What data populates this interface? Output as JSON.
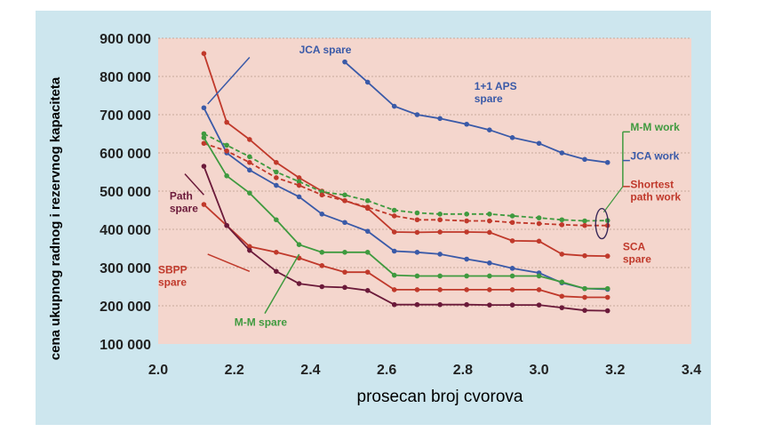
{
  "chart_data": {
    "type": "line",
    "xlabel": "prosecan broj cvorova",
    "ylabel": "cena ukupnog radnog i rezervnog kapaciteta",
    "xlim": [
      2.0,
      3.4
    ],
    "ylim": [
      100000,
      900000
    ],
    "x_ticks": [
      "2.0",
      "2.2",
      "2.4",
      "2.6",
      "2.8",
      "3.0",
      "3.2",
      "3.4"
    ],
    "y_ticks": [
      "100 000",
      "200 000",
      "300 000",
      "400 000",
      "500 000",
      "600 000",
      "700 000",
      "800 000",
      "900 000"
    ],
    "grid": true,
    "colors": {
      "plot_bg": "#f4d6cd",
      "frame_bg": "#cde6ee",
      "grid": "#c8a99c"
    },
    "series": [
      {
        "name": "1+1 APS spare",
        "color": "#3a5aa8",
        "style": "solid",
        "x": [
          2.49,
          2.55,
          2.62,
          2.68,
          2.74,
          2.81,
          2.87,
          2.93,
          3.0,
          3.06,
          3.12,
          3.18
        ],
        "y": [
          838000,
          785000,
          722000,
          700000,
          690000,
          675000,
          660000,
          640000,
          625000,
          600000,
          583000,
          575000
        ]
      },
      {
        "name": "JCA spare",
        "color": "#3a5aa8",
        "style": "solid",
        "x": [
          2.12,
          2.18,
          2.24,
          2.31,
          2.37,
          2.43,
          2.49,
          2.55,
          2.62,
          2.68,
          2.74,
          2.81,
          2.87,
          2.93,
          3.0,
          3.06,
          3.12,
          3.18
        ],
        "y": [
          718000,
          600000,
          555000,
          515000,
          485000,
          440000,
          418000,
          395000,
          343000,
          340000,
          335000,
          322000,
          312000,
          298000,
          286000,
          260000,
          245000,
          243000
        ]
      },
      {
        "name": "Shortest path work",
        "color": "#c0392b",
        "style": "solid",
        "x": [
          2.12,
          2.18,
          2.24,
          2.31,
          2.37,
          2.43,
          2.49,
          2.55,
          2.62,
          2.68,
          2.74,
          2.81,
          2.87,
          2.93,
          3.0,
          3.06,
          3.12,
          3.18
        ],
        "y": [
          860000,
          680000,
          635000,
          575000,
          535000,
          500000,
          475000,
          455000,
          393000,
          392000,
          393000,
          393000,
          392000,
          370000,
          369000,
          335000,
          331000,
          330000
        ]
      },
      {
        "name": "M-M work",
        "color": "#3f9a3f",
        "style": "dashed",
        "x": [
          2.12,
          2.18,
          2.24,
          2.31,
          2.37,
          2.43,
          2.49,
          2.55,
          2.62,
          2.68,
          2.74,
          2.81,
          2.87,
          2.93,
          3.0,
          3.06,
          3.12,
          3.18
        ],
        "y": [
          650000,
          620000,
          590000,
          550000,
          525000,
          498000,
          490000,
          475000,
          450000,
          443000,
          440000,
          440000,
          440000,
          435000,
          430000,
          425000,
          422000,
          423000
        ]
      },
      {
        "name": "JCA work",
        "color": "#c0392b",
        "style": "dashed",
        "x": [
          2.12,
          2.18,
          2.24,
          2.31,
          2.37,
          2.43,
          2.49,
          2.55,
          2.62,
          2.68,
          2.74,
          2.81,
          2.87,
          2.93,
          3.0,
          3.06,
          3.12,
          3.18
        ],
        "y": [
          625000,
          605000,
          575000,
          535000,
          515000,
          490000,
          475000,
          458000,
          435000,
          425000,
          425000,
          422000,
          422000,
          418000,
          415000,
          412000,
          410000,
          410000
        ]
      },
      {
        "name": "M-M spare",
        "color": "#3f9a3f",
        "style": "solid",
        "x": [
          2.12,
          2.18,
          2.24,
          2.31,
          2.37,
          2.43,
          2.49,
          2.55,
          2.62,
          2.68,
          2.74,
          2.81,
          2.87,
          2.93,
          3.0,
          3.06,
          3.12,
          3.18
        ],
        "y": [
          640000,
          540000,
          495000,
          425000,
          360000,
          340000,
          340000,
          340000,
          280000,
          278000,
          278000,
          278000,
          278000,
          278000,
          278000,
          262000,
          245000,
          245000
        ]
      },
      {
        "name": "SBPP spare",
        "color": "#c0392b",
        "style": "solid",
        "x": [
          2.12,
          2.18,
          2.24,
          2.31,
          2.37,
          2.43,
          2.49,
          2.55,
          2.62,
          2.68,
          2.74,
          2.81,
          2.87,
          2.93,
          3.0,
          3.06,
          3.12,
          3.18
        ],
        "y": [
          465000,
          410000,
          355000,
          340000,
          325000,
          305000,
          288000,
          288000,
          242000,
          242000,
          242000,
          242000,
          242000,
          242000,
          242000,
          225000,
          222000,
          222000
        ]
      },
      {
        "name": "Path spare",
        "color": "#6b1a3a",
        "style": "solid",
        "x": [
          2.12,
          2.18,
          2.24,
          2.31,
          2.37,
          2.43,
          2.49,
          2.55,
          2.62,
          2.68,
          2.74,
          2.81,
          2.87,
          2.93,
          3.0,
          3.06,
          3.12,
          3.18
        ],
        "y": [
          565000,
          410000,
          345000,
          290000,
          258000,
          250000,
          248000,
          240000,
          203000,
          203000,
          203000,
          203000,
          202000,
          202000,
          202000,
          195000,
          188000,
          187000
        ]
      }
    ],
    "annotations": [
      {
        "id": "jca-spare",
        "text": [
          "JCA spare"
        ],
        "color": "#3a5aa8",
        "x": 2.37,
        "y": 860000
      },
      {
        "id": "aps-spare",
        "text": [
          "1+1 APS",
          "spare"
        ],
        "color": "#3a5aa8",
        "x": 2.83,
        "y": 765000
      },
      {
        "id": "mm-work",
        "text": [
          "M-M work"
        ],
        "color": "#3f9a3f",
        "x": 3.24,
        "y": 658000
      },
      {
        "id": "jca-work",
        "text": [
          "JCA work"
        ],
        "color": "#3a5aa8",
        "x": 3.24,
        "y": 582000
      },
      {
        "id": "shortest-work",
        "text": [
          "Shortest",
          "path work"
        ],
        "color": "#c0392b",
        "x": 3.24,
        "y": 508000
      },
      {
        "id": "sca-spare",
        "text": [
          "SCA",
          "spare"
        ],
        "color": "#c0392b",
        "x": 3.22,
        "y": 345000
      },
      {
        "id": "path-spare",
        "text": [
          "Path",
          "spare"
        ],
        "color": "#6b1a3a",
        "x": 2.03,
        "y": 478000
      },
      {
        "id": "sbpp-spare",
        "text": [
          "SBPP",
          "spare"
        ],
        "color": "#c0392b",
        "x": 2.0,
        "y": 285000
      },
      {
        "id": "mm-spare",
        "text": [
          "M-M spare"
        ],
        "color": "#3f9a3f",
        "x": 2.2,
        "y": 148000
      }
    ]
  }
}
